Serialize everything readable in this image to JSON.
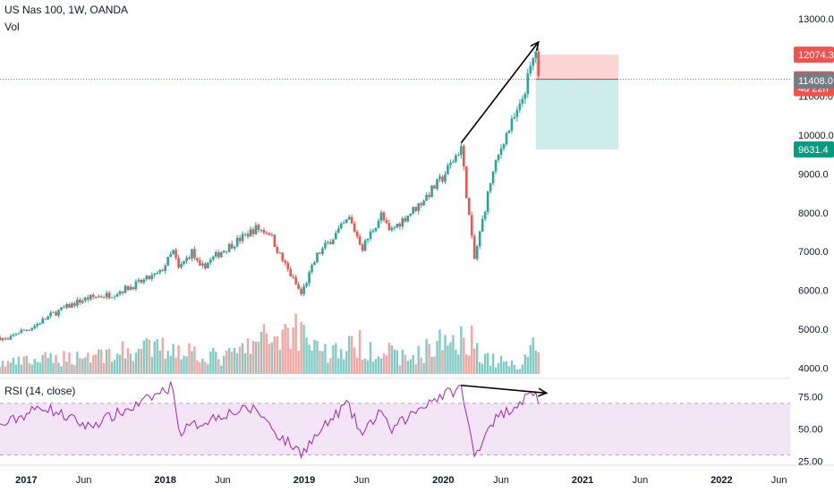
{
  "header": {
    "symbol_line": "US Nas 100, 1W, OANDA",
    "volume_label": "Vol"
  },
  "rsi_panel": {
    "label": "RSI (14, close)"
  },
  "price_axis": {
    "ticks": [
      "13000.0",
      "12000.0",
      "11000.0",
      "10000.0",
      "9000.0",
      "8000.0",
      "7000.0",
      "6000.0",
      "5000.0",
      "4000.0"
    ],
    "tick_values": [
      13000,
      12000,
      11000,
      10000,
      9000,
      8000,
      7000,
      6000,
      5000,
      4000
    ]
  },
  "price_badges": [
    {
      "text": "12074.3",
      "value": 12074.3,
      "bg": "#ef5350",
      "fg": "#ffffff"
    },
    {
      "text": "11440.2",
      "value": 11440.2,
      "bg": "#ef5350",
      "fg": "#ffffff"
    },
    {
      "text": "4d 22h",
      "value": 11210,
      "bg": "#ef5350",
      "fg": "#ffffff"
    },
    {
      "text": "11408.0",
      "value": 11408.0,
      "bg": "#787b86",
      "fg": "#ffffff"
    },
    {
      "text": "9631.4",
      "value": 9631.4,
      "bg": "#089981",
      "fg": "#ffffff"
    }
  ],
  "rsi_axis": {
    "ticks": [
      "75.00",
      "50.00",
      "25.00"
    ],
    "tick_values": [
      75,
      50,
      25
    ]
  },
  "time_axis": {
    "labels": [
      "2017",
      "Jun",
      "2018",
      "Jun",
      "2019",
      "Jun",
      "2020",
      "Jun",
      "2021",
      "Jun",
      "2022",
      "Jun"
    ],
    "dates": [
      "2017-01-01",
      "2017-06-01",
      "2018-01-01",
      "2018-06-01",
      "2019-01-01",
      "2019-06-01",
      "2020-01-01",
      "2020-06-01",
      "2021-01-01",
      "2021-06-01",
      "2022-01-01",
      "2022-06-01"
    ]
  },
  "colors": {
    "up": "#26a69a",
    "down": "#ef5350",
    "vol_up": "#80cbc4",
    "vol_down": "#f5a4a2",
    "rsi_line": "#9c27b0",
    "rsi_band": "#f3e5f5",
    "stop_zone": "#fbd4d3",
    "target_zone": "#cdeceb",
    "arrow": "#000000",
    "last_price_line": "#ef5350"
  },
  "chart_data": {
    "type": "candlestick",
    "title": "US Nas 100, 1W, OANDA",
    "interval": "1W",
    "x_range": [
      "2016-10-24",
      "2022-06-30"
    ],
    "ylim": [
      3800,
      13300
    ],
    "rsi_ylim": [
      22,
      88
    ],
    "rsi_bands": [
      30,
      70
    ],
    "anchors": [
      [
        "2016-10-24",
        4790
      ],
      [
        "2016-11-14",
        4700
      ],
      [
        "2016-12-05",
        4900
      ],
      [
        "2017-01-16",
        5050
      ],
      [
        "2017-03-13",
        5400
      ],
      [
        "2017-05-15",
        5700
      ],
      [
        "2017-06-12",
        5800
      ],
      [
        "2017-08-14",
        5900
      ],
      [
        "2017-10-16",
        6150
      ],
      [
        "2017-12-18",
        6450
      ],
      [
        "2018-01-22",
        7000
      ],
      [
        "2018-02-05",
        6550
      ],
      [
        "2018-03-12",
        7000
      ],
      [
        "2018-04-02",
        6550
      ],
      [
        "2018-05-28",
        7000
      ],
      [
        "2018-08-27",
        7600
      ],
      [
        "2018-10-01",
        7500
      ],
      [
        "2018-10-29",
        6900
      ],
      [
        "2018-12-24",
        5900
      ],
      [
        "2019-02-04",
        6900
      ],
      [
        "2019-04-29",
        7850
      ],
      [
        "2019-06-03",
        7100
      ],
      [
        "2019-07-22",
        7950
      ],
      [
        "2019-08-12",
        7500
      ],
      [
        "2019-10-28",
        8200
      ],
      [
        "2019-12-30",
        8900
      ],
      [
        "2020-02-17",
        9700
      ],
      [
        "2020-03-16",
        7300
      ],
      [
        "2020-03-23",
        6800
      ],
      [
        "2020-05-04",
        8800
      ],
      [
        "2020-06-08",
        9900
      ],
      [
        "2020-07-20",
        10700
      ],
      [
        "2020-08-31",
        12200
      ],
      [
        "2020-09-07",
        11400
      ]
    ],
    "volume_profile": [
      [
        "2016-10-24",
        0.12
      ],
      [
        "2018-01-29",
        0.32
      ],
      [
        "2018-06-01",
        0.18
      ],
      [
        "2018-10-08",
        0.45
      ],
      [
        "2018-12-17",
        0.55
      ],
      [
        "2019-03-01",
        0.25
      ],
      [
        "2019-06-03",
        0.35
      ],
      [
        "2019-10-01",
        0.18
      ],
      [
        "2020-02-24",
        0.5
      ],
      [
        "2020-04-27",
        0.18
      ],
      [
        "2020-07-20",
        0.1
      ],
      [
        "2020-09-07",
        0.45
      ]
    ],
    "rsi_anchors": [
      [
        "2016-10-24",
        52
      ],
      [
        "2017-02-13",
        68
      ],
      [
        "2017-06-12",
        52
      ],
      [
        "2017-10-16",
        68
      ],
      [
        "2018-01-22",
        84
      ],
      [
        "2018-02-05",
        48
      ],
      [
        "2018-06-04",
        62
      ],
      [
        "2018-08-27",
        66
      ],
      [
        "2018-10-29",
        44
      ],
      [
        "2018-12-24",
        32
      ],
      [
        "2019-04-22",
        70
      ],
      [
        "2019-06-03",
        45
      ],
      [
        "2019-07-22",
        66
      ],
      [
        "2019-08-12",
        48
      ],
      [
        "2019-11-25",
        72
      ],
      [
        "2020-02-17",
        82
      ],
      [
        "2020-03-23",
        29
      ],
      [
        "2020-05-04",
        55
      ],
      [
        "2020-08-31",
        80
      ],
      [
        "2020-09-07",
        68
      ]
    ],
    "position": {
      "start": "2020-08-31",
      "end": "2021-04-05",
      "entry": 11440.2,
      "stop": 12074.3,
      "target": 9631.4
    },
    "trend_arrow": {
      "from": [
        "2020-02-17",
        9800
      ],
      "to": [
        "2020-09-07",
        12400
      ]
    },
    "rsi_divergence_arrow": {
      "from": [
        "2020-02-17",
        84
      ],
      "to": [
        "2020-09-28",
        78
      ]
    },
    "last_price": 11440.2
  }
}
